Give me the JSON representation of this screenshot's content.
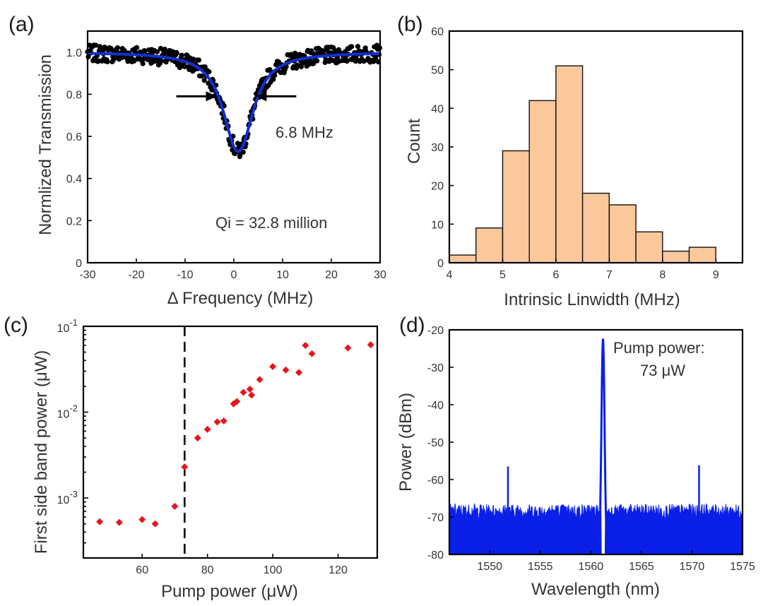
{
  "chart_data": [
    {
      "id": "a",
      "type": "scatter",
      "panel_label": "(a)",
      "xlabel": "Δ Frequency (MHz)",
      "ylabel": "Normlized Transmission",
      "xlim": [
        -30,
        30
      ],
      "ylim": [
        0,
        1.1
      ],
      "xticks": [
        -30,
        -20,
        -10,
        0,
        10,
        20,
        30
      ],
      "yticks": [
        0,
        0.2,
        0.4,
        0.6,
        0.8,
        1.0
      ],
      "ytick_labels": [
        "0",
        "0.2",
        "0.4",
        "0.6",
        "0.8",
        "1.0"
      ],
      "grid": false,
      "series": [
        {
          "role": "measured data",
          "color": "#000000",
          "model": "split-resonance Lorentzian with noise ±0.04",
          "params": {
            "baseline": 1.0,
            "depth": 0.47,
            "center": 0.9,
            "half_width": 3.4,
            "split": 1.6,
            "noise": 0.04
          }
        },
        {
          "role": "fit",
          "color": "#1030d0",
          "model": "split-resonance Lorentzian",
          "params": {
            "baseline": 1.0,
            "depth": 0.47,
            "center": 0.9,
            "half_width": 3.4,
            "split": 1.6
          }
        }
      ],
      "annotations": {
        "linewidth_label": "6.8 MHz",
        "linewidth_markers_x": [
          -3.4,
          4.4
        ],
        "linewidth_marker_y": 0.79,
        "q_label": "Qi = 32.8 million"
      }
    },
    {
      "id": "b",
      "type": "bar",
      "panel_label": "(b)",
      "xlabel": "Intrinsic Linwidth (MHz)",
      "ylabel": "Count",
      "xlim": [
        4,
        9.5
      ],
      "ylim": [
        0,
        60
      ],
      "xticks": [
        4,
        5,
        6,
        7,
        8,
        9
      ],
      "yticks": [
        0,
        10,
        20,
        30,
        40,
        50,
        60
      ],
      "grid": false,
      "bar_color": "#fbc89c",
      "bin_edges": [
        4.0,
        4.5,
        5.0,
        5.5,
        6.0,
        6.5,
        7.0,
        7.5,
        8.0,
        8.5,
        9.0
      ],
      "values": [
        2,
        9,
        29,
        42,
        51,
        18,
        15,
        8,
        3,
        4
      ]
    },
    {
      "id": "c",
      "type": "scatter",
      "panel_label": "(c)",
      "xlabel": "Pump power (μW)",
      "ylabel": "First side band power (μW)",
      "xscale": "linear",
      "yscale": "log",
      "xlim": [
        42,
        132
      ],
      "ylim": [
        0.0002,
        0.1
      ],
      "xticks": [
        60,
        80,
        100,
        120
      ],
      "yticks": [
        0.001,
        0.01,
        0.1
      ],
      "ytick_labels": [
        {
          "base": "10",
          "exp": "-3"
        },
        {
          "base": "10",
          "exp": "-2"
        },
        {
          "base": "10",
          "exp": "-1"
        }
      ],
      "grid": false,
      "marker_color": "#e8141d",
      "threshold_x": 73,
      "x": [
        47,
        53,
        60,
        64,
        70,
        73,
        77,
        80,
        83,
        85,
        88,
        89,
        91,
        93,
        93.5,
        96,
        100,
        104,
        108,
        110,
        112,
        123,
        130
      ],
      "y": [
        0.00053,
        0.00052,
        0.00056,
        0.0005,
        0.0008,
        0.0023,
        0.005,
        0.0063,
        0.0077,
        0.0079,
        0.0125,
        0.0133,
        0.017,
        0.0185,
        0.0158,
        0.024,
        0.034,
        0.031,
        0.029,
        0.06,
        0.048,
        0.056,
        0.061
      ]
    },
    {
      "id": "d",
      "type": "line",
      "panel_label": "(d)",
      "xlabel": "Wavelength (nm)",
      "ylabel": "Power (dBm)",
      "xlim": [
        1546,
        1575
      ],
      "ylim": [
        -80,
        -20
      ],
      "xticks": [
        1550,
        1555,
        1560,
        1565,
        1570,
        1575
      ],
      "yticks": [
        -80,
        -70,
        -60,
        -50,
        -40,
        -30,
        -20
      ],
      "grid": false,
      "line_color": "#0a1fe8",
      "noise_floor_dbm": -68.5,
      "noise_span_db": 4,
      "peaks": [
        {
          "x": 1551.8,
          "y": -56.5
        },
        {
          "x": 1561.2,
          "y": -22.5
        },
        {
          "x": 1570.7,
          "y": -56.2
        }
      ],
      "annotation": {
        "line1": "Pump power:",
        "line2": "73 μW"
      }
    }
  ]
}
